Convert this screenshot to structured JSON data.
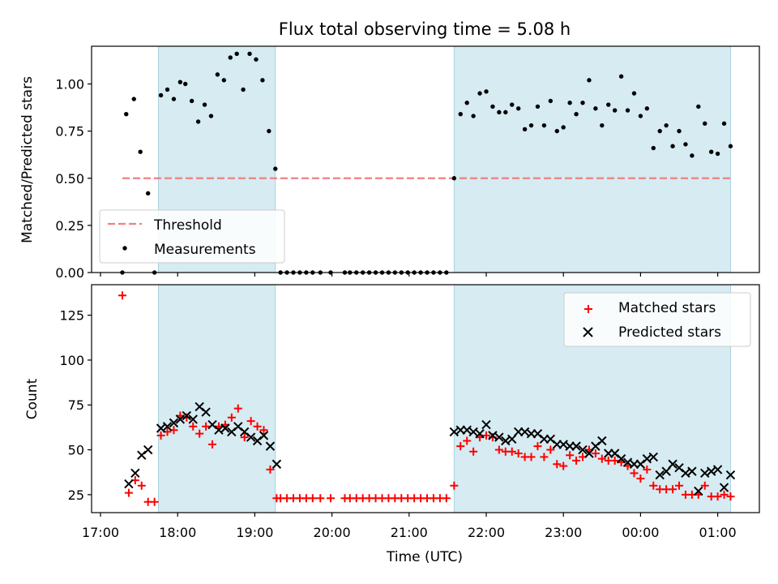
{
  "chart_data": [
    {
      "panel": "top",
      "type": "scatter",
      "title": "Flux total observing time = 5.08 h",
      "ylabel": "Matched/Predicted stars",
      "xlabel": "",
      "ylim": [
        0,
        1.2
      ],
      "yticks": [
        "0.00",
        "0.25",
        "0.50",
        "0.75",
        "1.00"
      ],
      "xticks": [
        "17:00",
        "18:00",
        "19:00",
        "20:00",
        "21:00",
        "22:00",
        "23:00",
        "00:00",
        "01:00"
      ],
      "observing_windows": [
        [
          "17:45",
          "19:16"
        ],
        [
          "21:35",
          "01:10"
        ]
      ],
      "threshold": {
        "name": "Threshold",
        "value": 0.5,
        "x_range": [
          "17:17",
          "01:10"
        ],
        "color": "#f08080"
      },
      "legend_position": "lower-left",
      "series": [
        {
          "name": "Measurements",
          "color": "#000000",
          "points": [
            [
              "17:17",
              0.0
            ],
            [
              "17:20",
              0.84
            ],
            [
              "17:26",
              0.92
            ],
            [
              "17:31",
              0.64
            ],
            [
              "17:37",
              0.42
            ],
            [
              "17:42",
              0.0
            ],
            [
              "17:47",
              0.94
            ],
            [
              "17:52",
              0.97
            ],
            [
              "17:57",
              0.92
            ],
            [
              "18:02",
              1.01
            ],
            [
              "18:06",
              1.0
            ],
            [
              "18:11",
              0.91
            ],
            [
              "18:16",
              0.8
            ],
            [
              "18:21",
              0.89
            ],
            [
              "18:26",
              0.83
            ],
            [
              "18:31",
              1.05
            ],
            [
              "18:36",
              1.02
            ],
            [
              "18:41",
              1.14
            ],
            [
              "18:46",
              1.16
            ],
            [
              "18:51",
              0.97
            ],
            [
              "18:56",
              1.16
            ],
            [
              "19:01",
              1.13
            ],
            [
              "19:06",
              1.02
            ],
            [
              "19:11",
              0.75
            ],
            [
              "19:16",
              0.55
            ],
            [
              "19:20",
              0.0
            ],
            [
              "19:25",
              0.0
            ],
            [
              "19:30",
              0.0
            ],
            [
              "19:35",
              0.0
            ],
            [
              "19:40",
              0.0
            ],
            [
              "19:45",
              0.0
            ],
            [
              "19:51",
              0.0
            ],
            [
              "19:59",
              0.0
            ],
            [
              "20:10",
              0.0
            ],
            [
              "20:14",
              0.0
            ],
            [
              "20:19",
              0.0
            ],
            [
              "20:24",
              0.0
            ],
            [
              "20:29",
              0.0
            ],
            [
              "20:34",
              0.0
            ],
            [
              "20:39",
              0.0
            ],
            [
              "20:44",
              0.0
            ],
            [
              "20:49",
              0.0
            ],
            [
              "20:54",
              0.0
            ],
            [
              "20:59",
              0.0
            ],
            [
              "21:04",
              0.0
            ],
            [
              "21:09",
              0.0
            ],
            [
              "21:14",
              0.0
            ],
            [
              "21:19",
              0.0
            ],
            [
              "21:24",
              0.0
            ],
            [
              "21:29",
              0.0
            ],
            [
              "21:35",
              0.5
            ],
            [
              "21:40",
              0.84
            ],
            [
              "21:45",
              0.9
            ],
            [
              "21:50",
              0.83
            ],
            [
              "21:55",
              0.95
            ],
            [
              "22:00",
              0.96
            ],
            [
              "22:05",
              0.88
            ],
            [
              "22:10",
              0.85
            ],
            [
              "22:15",
              0.85
            ],
            [
              "22:20",
              0.89
            ],
            [
              "22:25",
              0.87
            ],
            [
              "22:30",
              0.76
            ],
            [
              "22:35",
              0.78
            ],
            [
              "22:40",
              0.88
            ],
            [
              "22:45",
              0.78
            ],
            [
              "22:50",
              0.91
            ],
            [
              "22:55",
              0.75
            ],
            [
              "23:00",
              0.77
            ],
            [
              "23:05",
              0.9
            ],
            [
              "23:10",
              0.84
            ],
            [
              "23:15",
              0.9
            ],
            [
              "23:20",
              1.02
            ],
            [
              "23:25",
              0.87
            ],
            [
              "23:30",
              0.78
            ],
            [
              "23:35",
              0.89
            ],
            [
              "23:40",
              0.86
            ],
            [
              "23:45",
              1.04
            ],
            [
              "23:50",
              0.86
            ],
            [
              "23:55",
              0.95
            ],
            [
              "00:00",
              0.83
            ],
            [
              "00:05",
              0.87
            ],
            [
              "00:10",
              0.66
            ],
            [
              "00:15",
              0.75
            ],
            [
              "00:20",
              0.78
            ],
            [
              "00:25",
              0.67
            ],
            [
              "00:30",
              0.75
            ],
            [
              "00:35",
              0.68
            ],
            [
              "00:40",
              0.62
            ],
            [
              "00:45",
              0.88
            ],
            [
              "00:50",
              0.79
            ],
            [
              "00:55",
              0.64
            ],
            [
              "01:00",
              0.63
            ],
            [
              "01:05",
              0.79
            ],
            [
              "01:10",
              0.67
            ]
          ]
        }
      ]
    },
    {
      "panel": "bottom",
      "type": "scatter",
      "title": "",
      "ylabel": "Count",
      "xlabel": "Time (UTC)",
      "ylim": [
        15,
        142
      ],
      "yticks": [
        "25",
        "50",
        "75",
        "100",
        "125"
      ],
      "xticks": [
        "17:00",
        "18:00",
        "19:00",
        "20:00",
        "21:00",
        "22:00",
        "23:00",
        "00:00",
        "01:00"
      ],
      "observing_windows": [
        [
          "17:45",
          "19:16"
        ],
        [
          "21:35",
          "01:10"
        ]
      ],
      "legend_position": "upper-right",
      "series": [
        {
          "name": "Matched stars",
          "color": "#ff0000",
          "marker": "plus",
          "points": [
            [
              "17:17",
              136
            ],
            [
              "17:22",
              26
            ],
            [
              "17:27",
              33
            ],
            [
              "17:32",
              30
            ],
            [
              "17:37",
              21
            ],
            [
              "17:42",
              21
            ],
            [
              "17:47",
              58
            ],
            [
              "17:52",
              60
            ],
            [
              "17:57",
              61
            ],
            [
              "18:02",
              69
            ],
            [
              "18:07",
              68
            ],
            [
              "18:12",
              63
            ],
            [
              "18:17",
              59
            ],
            [
              "18:22",
              63
            ],
            [
              "18:27",
              53
            ],
            [
              "18:32",
              63
            ],
            [
              "18:37",
              64
            ],
            [
              "18:42",
              68
            ],
            [
              "18:47",
              73
            ],
            [
              "18:52",
              57
            ],
            [
              "18:57",
              66
            ],
            [
              "19:02",
              63
            ],
            [
              "19:07",
              61
            ],
            [
              "19:12",
              39
            ],
            [
              "19:17",
              23
            ],
            [
              "19:20",
              23
            ],
            [
              "19:25",
              23
            ],
            [
              "19:30",
              23
            ],
            [
              "19:35",
              23
            ],
            [
              "19:40",
              23
            ],
            [
              "19:45",
              23
            ],
            [
              "19:51",
              23
            ],
            [
              "19:59",
              23
            ],
            [
              "20:10",
              23
            ],
            [
              "20:14",
              23
            ],
            [
              "20:19",
              23
            ],
            [
              "20:24",
              23
            ],
            [
              "20:29",
              23
            ],
            [
              "20:34",
              23
            ],
            [
              "20:39",
              23
            ],
            [
              "20:44",
              23
            ],
            [
              "20:49",
              23
            ],
            [
              "20:54",
              23
            ],
            [
              "20:59",
              23
            ],
            [
              "21:04",
              23
            ],
            [
              "21:09",
              23
            ],
            [
              "21:14",
              23
            ],
            [
              "21:19",
              23
            ],
            [
              "21:24",
              23
            ],
            [
              "21:29",
              23
            ],
            [
              "21:35",
              30
            ],
            [
              "21:40",
              52
            ],
            [
              "21:45",
              55
            ],
            [
              "21:50",
              49
            ],
            [
              "21:55",
              57
            ],
            [
              "22:00",
              58
            ],
            [
              "22:05",
              57
            ],
            [
              "22:10",
              50
            ],
            [
              "22:15",
              49
            ],
            [
              "22:20",
              49
            ],
            [
              "22:25",
              48
            ],
            [
              "22:30",
              46
            ],
            [
              "22:35",
              46
            ],
            [
              "22:40",
              52
            ],
            [
              "22:45",
              46
            ],
            [
              "22:50",
              50
            ],
            [
              "22:55",
              42
            ],
            [
              "23:00",
              41
            ],
            [
              "23:05",
              47
            ],
            [
              "23:10",
              44
            ],
            [
              "23:15",
              46
            ],
            [
              "23:20",
              50
            ],
            [
              "23:25",
              48
            ],
            [
              "23:30",
              45
            ],
            [
              "23:35",
              44
            ],
            [
              "23:40",
              44
            ],
            [
              "23:45",
              43
            ],
            [
              "23:50",
              41
            ],
            [
              "23:55",
              37
            ],
            [
              "00:00",
              34
            ],
            [
              "00:05",
              39
            ],
            [
              "00:10",
              30
            ],
            [
              "00:15",
              28
            ],
            [
              "00:20",
              28
            ],
            [
              "00:25",
              28
            ],
            [
              "00:30",
              30
            ],
            [
              "00:35",
              25
            ],
            [
              "00:40",
              25
            ],
            [
              "00:45",
              25
            ],
            [
              "00:50",
              30
            ],
            [
              "00:55",
              24
            ],
            [
              "01:00",
              24
            ],
            [
              "01:05",
              25
            ],
            [
              "01:10",
              24
            ]
          ]
        },
        {
          "name": "Predicted stars",
          "color": "#000000",
          "marker": "x",
          "points": [
            [
              "17:22",
              31
            ],
            [
              "17:27",
              37
            ],
            [
              "17:32",
              47
            ],
            [
              "17:37",
              50
            ],
            [
              "17:47",
              62
            ],
            [
              "17:52",
              63
            ],
            [
              "17:57",
              65
            ],
            [
              "18:02",
              67
            ],
            [
              "18:07",
              69
            ],
            [
              "18:12",
              67
            ],
            [
              "18:17",
              74
            ],
            [
              "18:22",
              71
            ],
            [
              "18:27",
              64
            ],
            [
              "18:32",
              61
            ],
            [
              "18:37",
              62
            ],
            [
              "18:42",
              60
            ],
            [
              "18:47",
              63
            ],
            [
              "18:52",
              60
            ],
            [
              "18:57",
              57
            ],
            [
              "19:02",
              55
            ],
            [
              "19:07",
              58
            ],
            [
              "19:12",
              52
            ],
            [
              "19:17",
              42
            ],
            [
              "21:35",
              60
            ],
            [
              "21:40",
              61
            ],
            [
              "21:45",
              61
            ],
            [
              "21:50",
              60
            ],
            [
              "21:55",
              59
            ],
            [
              "22:00",
              64
            ],
            [
              "22:05",
              58
            ],
            [
              "22:10",
              57
            ],
            [
              "22:15",
              55
            ],
            [
              "22:20",
              56
            ],
            [
              "22:25",
              60
            ],
            [
              "22:30",
              60
            ],
            [
              "22:35",
              59
            ],
            [
              "22:40",
              59
            ],
            [
              "22:45",
              56
            ],
            [
              "22:50",
              56
            ],
            [
              "22:55",
              53
            ],
            [
              "23:00",
              53
            ],
            [
              "23:05",
              52
            ],
            [
              "23:10",
              52
            ],
            [
              "23:15",
              50
            ],
            [
              "23:20",
              48
            ],
            [
              "23:25",
              52
            ],
            [
              "23:30",
              55
            ],
            [
              "23:35",
              48
            ],
            [
              "23:40",
              48
            ],
            [
              "23:45",
              45
            ],
            [
              "23:50",
              43
            ],
            [
              "23:55",
              42
            ],
            [
              "00:00",
              42
            ],
            [
              "00:05",
              45
            ],
            [
              "00:10",
              46
            ],
            [
              "00:15",
              36
            ],
            [
              "00:20",
              38
            ],
            [
              "00:25",
              42
            ],
            [
              "00:30",
              40
            ],
            [
              "00:35",
              37
            ],
            [
              "00:40",
              38
            ],
            [
              "00:45",
              27
            ],
            [
              "00:50",
              37
            ],
            [
              "00:55",
              38
            ],
            [
              "01:00",
              39
            ],
            [
              "01:05",
              29
            ],
            [
              "01:10",
              36
            ]
          ]
        }
      ]
    }
  ]
}
